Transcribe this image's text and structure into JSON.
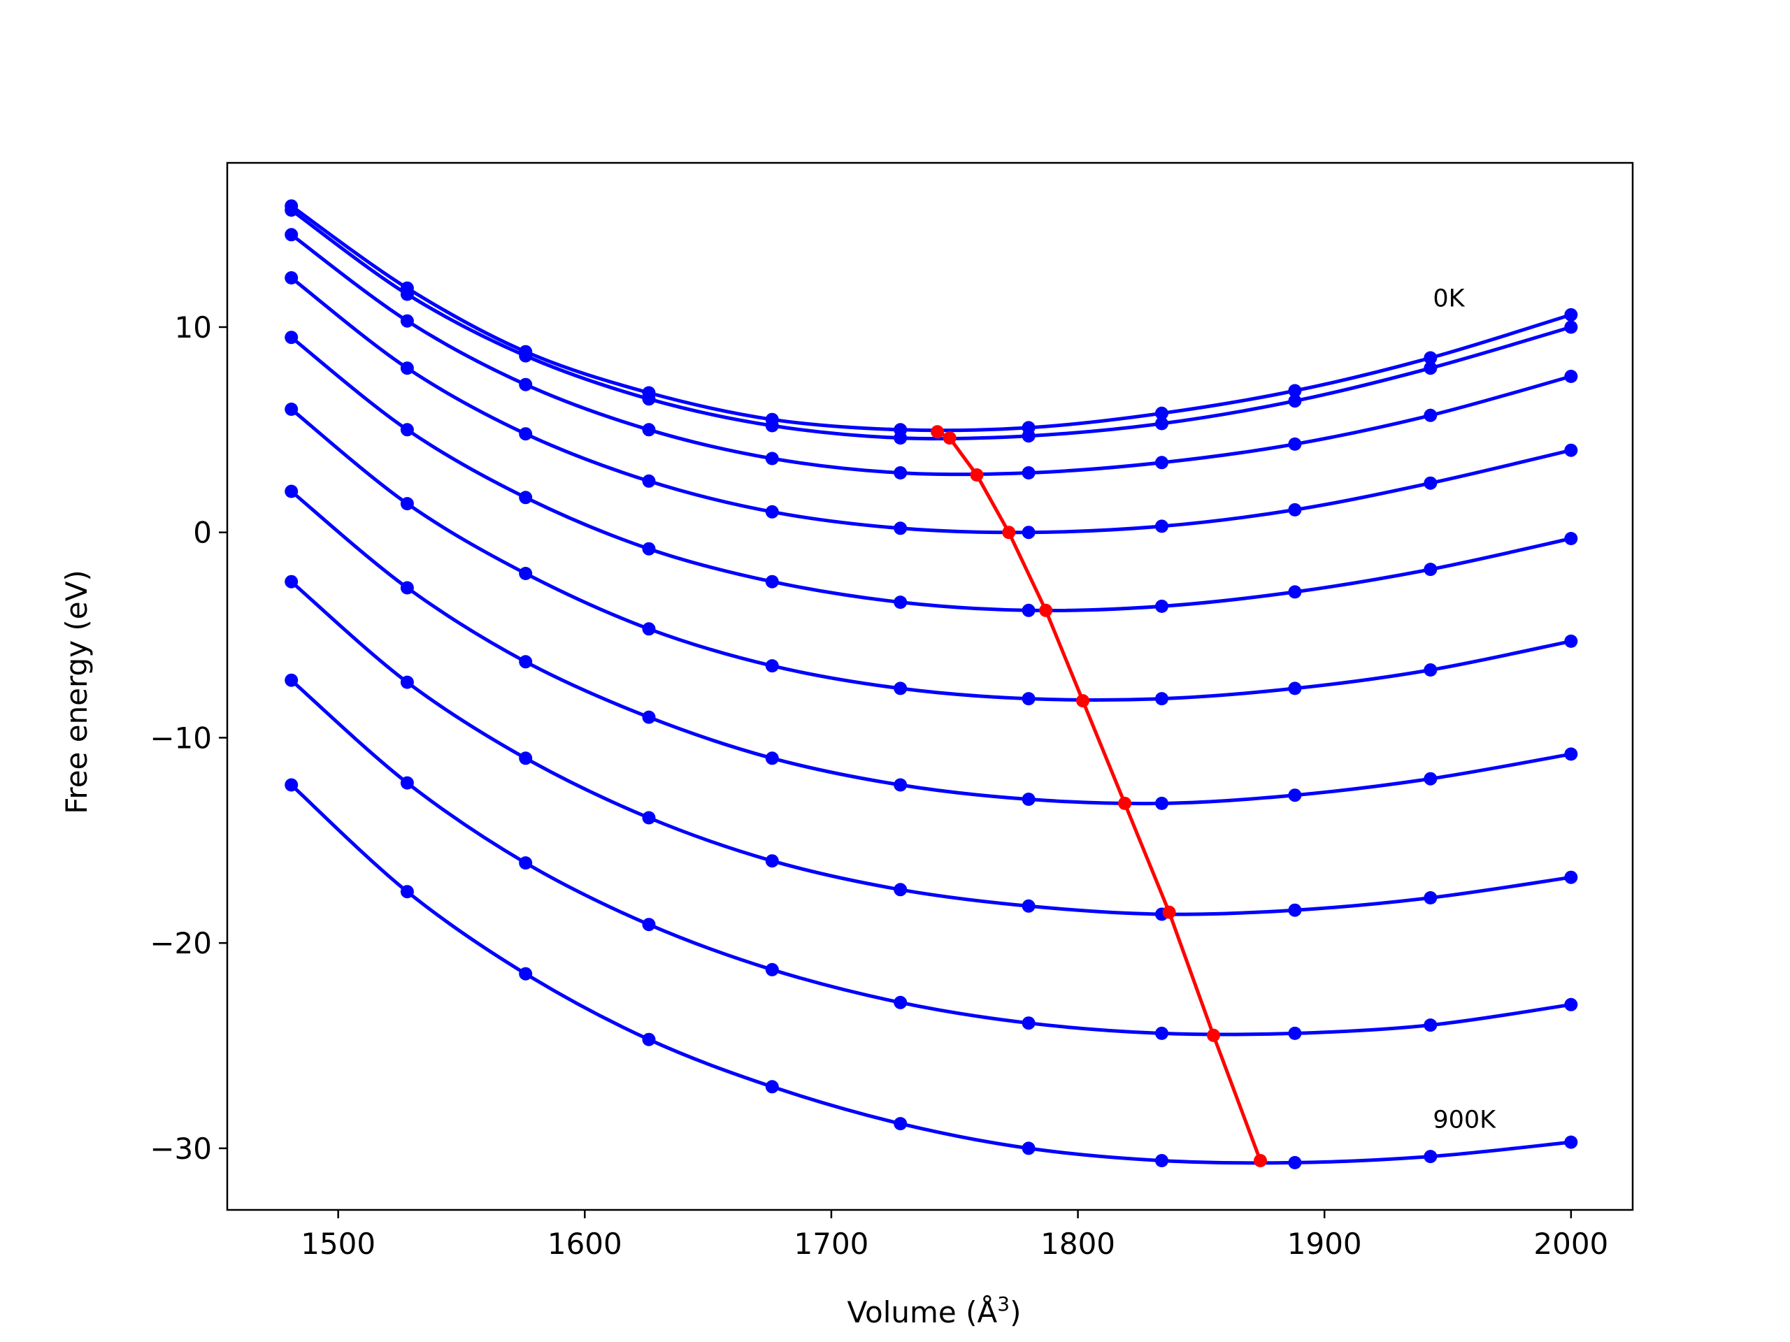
{
  "chart_data": {
    "type": "line",
    "xlabel": "Volume (Å",
    "xlabel_sup": "3",
    "xlabel_close": ")",
    "ylabel": "Free energy (eV)",
    "xlim": [
      1455,
      2025
    ],
    "ylim": [
      -33,
      18
    ],
    "xticks": [
      1500,
      1600,
      1700,
      1800,
      1900,
      2000
    ],
    "yticks": [
      -30,
      -20,
      -10,
      0,
      10
    ],
    "grid": false,
    "legend": "none",
    "colors": {
      "curves": "#0000ff",
      "minimum_path": "#ff0000",
      "axes": "#000000"
    },
    "volumes": [
      1481,
      1528,
      1576,
      1626,
      1676,
      1728,
      1780,
      1834,
      1888,
      1943,
      2000
    ],
    "series": [
      {
        "values": [
          15.9,
          11.9,
          8.8,
          6.8,
          5.5,
          5.0,
          5.1,
          5.8,
          6.9,
          8.5,
          10.6
        ]
      },
      {
        "values": [
          15.7,
          11.6,
          8.6,
          6.5,
          5.2,
          4.6,
          4.7,
          5.3,
          6.4,
          8.0,
          10.0
        ]
      },
      {
        "values": [
          14.5,
          10.3,
          7.2,
          5.0,
          3.6,
          2.9,
          2.9,
          3.4,
          4.3,
          5.7,
          7.6
        ]
      },
      {
        "values": [
          12.4,
          8.0,
          4.8,
          2.5,
          1.0,
          0.2,
          0.0,
          0.3,
          1.1,
          2.4,
          4.0
        ]
      },
      {
        "values": [
          9.5,
          5.0,
          1.7,
          -0.8,
          -2.4,
          -3.4,
          -3.8,
          -3.6,
          -2.9,
          -1.8,
          -0.3
        ]
      },
      {
        "values": [
          6.0,
          1.4,
          -2.0,
          -4.7,
          -6.5,
          -7.6,
          -8.1,
          -8.1,
          -7.6,
          -6.7,
          -5.3
        ]
      },
      {
        "values": [
          2.0,
          -2.7,
          -6.3,
          -9.0,
          -11.0,
          -12.3,
          -13.0,
          -13.2,
          -12.8,
          -12.0,
          -10.8
        ]
      },
      {
        "values": [
          -2.4,
          -7.3,
          -11.0,
          -13.9,
          -16.0,
          -17.4,
          -18.2,
          -18.6,
          -18.4,
          -17.8,
          -16.8
        ]
      },
      {
        "values": [
          -7.2,
          -12.2,
          -16.1,
          -19.1,
          -21.3,
          -22.9,
          -23.9,
          -24.4,
          -24.4,
          -24.0,
          -23.0
        ]
      },
      {
        "values": [
          -12.3,
          -17.5,
          -21.5,
          -24.7,
          -27.0,
          -28.8,
          -30.0,
          -30.6,
          -30.7,
          -30.4,
          -29.7
        ]
      }
    ],
    "minimum_path": {
      "x": [
        1743,
        1748,
        1759,
        1772,
        1787,
        1802,
        1819,
        1837,
        1855,
        1874
      ],
      "y": [
        4.9,
        4.6,
        2.8,
        0.0,
        -3.8,
        -8.2,
        -13.2,
        -18.5,
        -24.5,
        -30.6
      ]
    },
    "annotations": [
      {
        "text": "0K",
        "x": 1944,
        "y": 11.0
      },
      {
        "text": "900K",
        "x": 1944,
        "y": -29.0
      }
    ]
  }
}
